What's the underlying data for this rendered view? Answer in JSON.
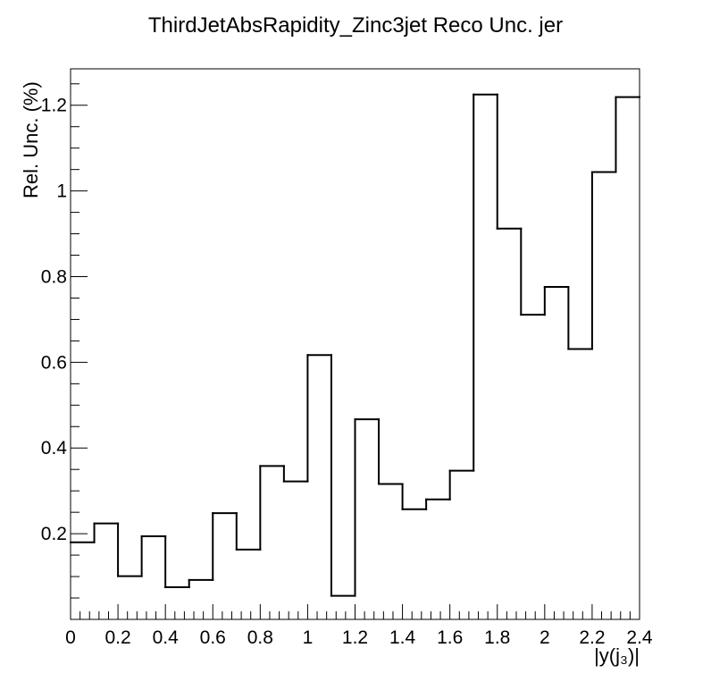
{
  "chart_data": {
    "type": "histogram",
    "title": "ThirdJetAbsRapidity_Zinc3jet Reco Unc. jer",
    "xlabel": "|y(j₃)|",
    "ylabel": "Rel. Unc. (%)",
    "xlim": [
      0,
      2.4
    ],
    "ylim": [
      0,
      1.285
    ],
    "x_ticks": [
      "0",
      "0.2",
      "0.4",
      "0.6",
      "0.8",
      "1",
      "1.2",
      "1.4",
      "1.6",
      "1.8",
      "2",
      "2.2",
      "2.4"
    ],
    "y_ticks": [
      "0.2",
      "0.4",
      "0.6",
      "0.8",
      "1",
      "1.2"
    ],
    "bin_edges": [
      0,
      0.1,
      0.2,
      0.3,
      0.4,
      0.5,
      0.6,
      0.7,
      0.8,
      0.9,
      1.0,
      1.1,
      1.2,
      1.3,
      1.4,
      1.5,
      1.6,
      1.7,
      1.8,
      1.9,
      2.0,
      2.1,
      2.2,
      2.3,
      2.4
    ],
    "values": [
      0.18,
      0.224,
      0.101,
      0.194,
      0.075,
      0.092,
      0.248,
      0.163,
      0.358,
      0.322,
      0.617,
      0.055,
      0.467,
      0.316,
      0.257,
      0.28,
      0.347,
      1.225,
      0.912,
      0.711,
      0.776,
      0.631,
      1.044,
      1.219
    ],
    "grid": false,
    "legend": "none",
    "line_color": "#000000"
  }
}
